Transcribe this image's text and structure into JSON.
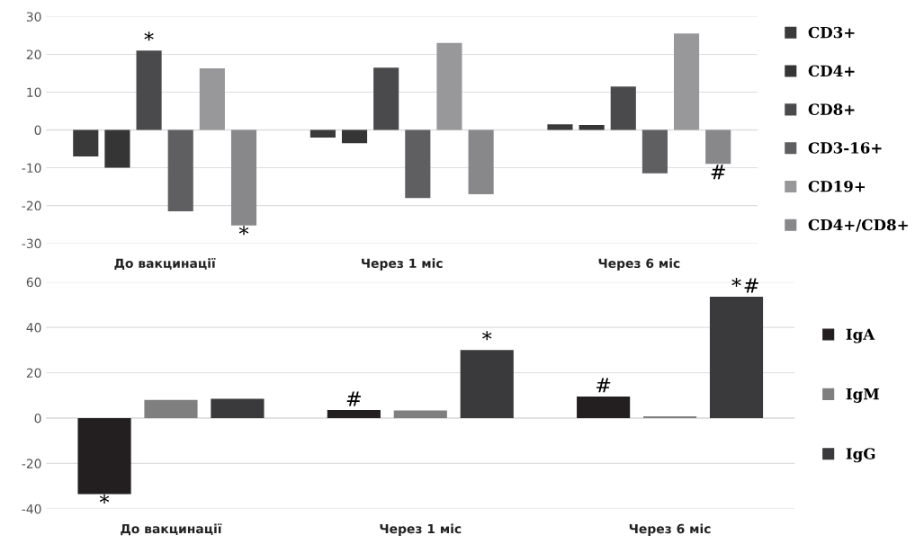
{
  "chart_data": [
    {
      "type": "bar",
      "categories": [
        "До вакцинації",
        "Через 1 міс",
        "Через 6 міс"
      ],
      "series": [
        {
          "name": "CD3+",
          "color": "#3a3a3a",
          "values": [
            -7,
            -2,
            1.5
          ]
        },
        {
          "name": "CD4+",
          "color": "#353535",
          "values": [
            -10,
            -3.5,
            1.3
          ]
        },
        {
          "name": "CD8+",
          "color": "#4a4a4c",
          "values": [
            21,
            16.5,
            11.5
          ]
        },
        {
          "name": "CD3-16+",
          "color": "#5f5f62",
          "values": [
            -21.5,
            -18,
            -11.5
          ]
        },
        {
          "name": "CD19+",
          "color": "#98989b",
          "values": [
            16.3,
            23,
            25.5
          ]
        },
        {
          "name": "CD4+/CD8+",
          "color": "#88888b",
          "values": [
            -25.3,
            -17,
            -9
          ]
        }
      ],
      "ylim": [
        -30,
        30
      ],
      "yticks": [
        -30,
        -20,
        -10,
        0,
        10,
        20,
        30
      ],
      "grid": "y",
      "legend": "right",
      "annotations": [
        {
          "text": "*",
          "y": 21
        },
        {
          "text": "*",
          "y": -25.3
        },
        {
          "text": "#",
          "y": -9
        }
      ]
    },
    {
      "type": "bar",
      "categories": [
        "До вакцинації",
        "Через 1 міс",
        "Через 6 міс"
      ],
      "series": [
        {
          "name": "IgA",
          "color": "#231f20",
          "values": [
            -33.5,
            3.5,
            9.5
          ]
        },
        {
          "name": "IgM",
          "color": "#7f7f80",
          "values": [
            8,
            3.3,
            0.8
          ]
        },
        {
          "name": "IgG",
          "color": "#3a3a3c",
          "values": [
            8.5,
            30,
            53.5
          ]
        }
      ],
      "ylim": [
        -40,
        60
      ],
      "yticks": [
        -40,
        -20,
        0,
        20,
        40,
        60
      ],
      "grid": "y",
      "legend": "right",
      "annotations": [
        {
          "text": "*",
          "y": -33.5
        },
        {
          "text": "#",
          "y": 3.5
        },
        {
          "text": "*",
          "y": 30
        },
        {
          "text": "#",
          "y": 9.5
        },
        {
          "text": "*",
          "y": 53.5
        },
        {
          "text": "#",
          "y": 53.5
        }
      ]
    }
  ]
}
